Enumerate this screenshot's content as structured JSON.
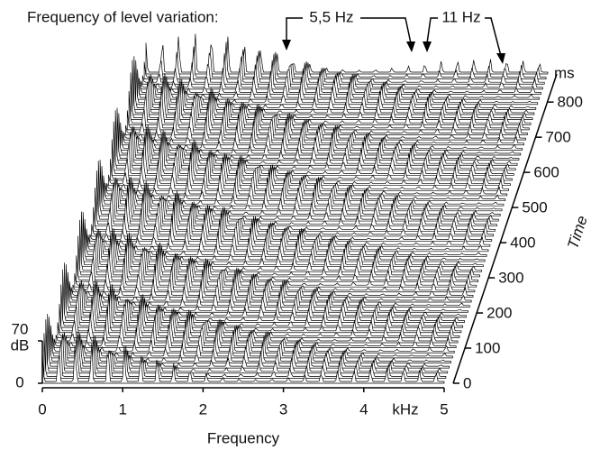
{
  "chart_data": {
    "type": "waterfall",
    "title": "Frequency of level variation:",
    "annotations": [
      "5,5 Hz",
      "11 Hz"
    ],
    "x_label": "Frequency",
    "x_unit": "kHz",
    "xlim": [
      0,
      5
    ],
    "xticks": [
      0,
      1,
      2,
      3,
      4,
      5
    ],
    "time_label": "Time",
    "time_unit": "ms",
    "tlim": [
      0,
      880
    ],
    "tticks": [
      0,
      100,
      200,
      300,
      400,
      500,
      600,
      700,
      800
    ],
    "level_unit": "dB",
    "zlim": [
      0,
      70
    ],
    "zticks": [
      0,
      70
    ]
  }
}
